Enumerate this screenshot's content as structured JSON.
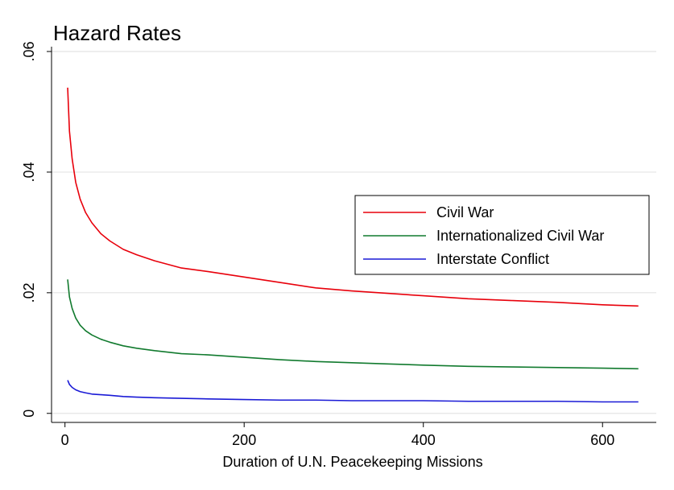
{
  "chart_data": {
    "type": "line",
    "title": "Hazard Rates",
    "xlabel": "Duration of U.N. Peacekeeping Missions",
    "ylabel": "",
    "xlim": [
      -15,
      660
    ],
    "ylim": [
      -0.0015,
      0.0608
    ],
    "xticks": [
      0,
      200,
      400,
      600
    ],
    "xtick_labels": [
      "0",
      "200",
      "400",
      "600"
    ],
    "yticks": [
      0,
      0.02,
      0.04,
      0.06
    ],
    "ytick_labels": [
      "0",
      ".02",
      ".04",
      ".06"
    ],
    "grid": true,
    "legend_position": "right",
    "x": [
      3,
      5,
      8,
      12,
      17,
      23,
      30,
      40,
      50,
      65,
      80,
      100,
      130,
      160,
      200,
      240,
      280,
      320,
      360,
      400,
      450,
      500,
      550,
      600,
      640
    ],
    "series": [
      {
        "name": "Civil War",
        "color": "#e8000b",
        "values": [
          0.054,
          0.0468,
          0.0422,
          0.0383,
          0.0355,
          0.0333,
          0.0316,
          0.0298,
          0.0286,
          0.0272,
          0.0263,
          0.0253,
          0.0241,
          0.0235,
          0.0226,
          0.0217,
          0.0208,
          0.0203,
          0.0199,
          0.0195,
          0.019,
          0.0187,
          0.0184,
          0.018,
          0.0178
        ]
      },
      {
        "name": "Internationalized Civil War",
        "color": "#117a2e",
        "values": [
          0.0222,
          0.0193,
          0.0174,
          0.0158,
          0.0146,
          0.0137,
          0.013,
          0.0123,
          0.0118,
          0.0112,
          0.0108,
          0.0104,
          0.0099,
          0.0097,
          0.0093,
          0.0089,
          0.0086,
          0.0084,
          0.0082,
          0.008,
          0.0078,
          0.0077,
          0.0076,
          0.0075,
          0.0074
        ]
      },
      {
        "name": "Interstate Conflict",
        "color": "#1a1ad6",
        "values": [
          0.0055,
          0.0048,
          0.0043,
          0.0039,
          0.0036,
          0.0034,
          0.0032,
          0.0031,
          0.003,
          0.0028,
          0.0027,
          0.0026,
          0.0025,
          0.0024,
          0.0023,
          0.0022,
          0.0022,
          0.0021,
          0.0021,
          0.0021,
          0.002,
          0.002,
          0.002,
          0.0019,
          0.0019
        ]
      }
    ]
  }
}
